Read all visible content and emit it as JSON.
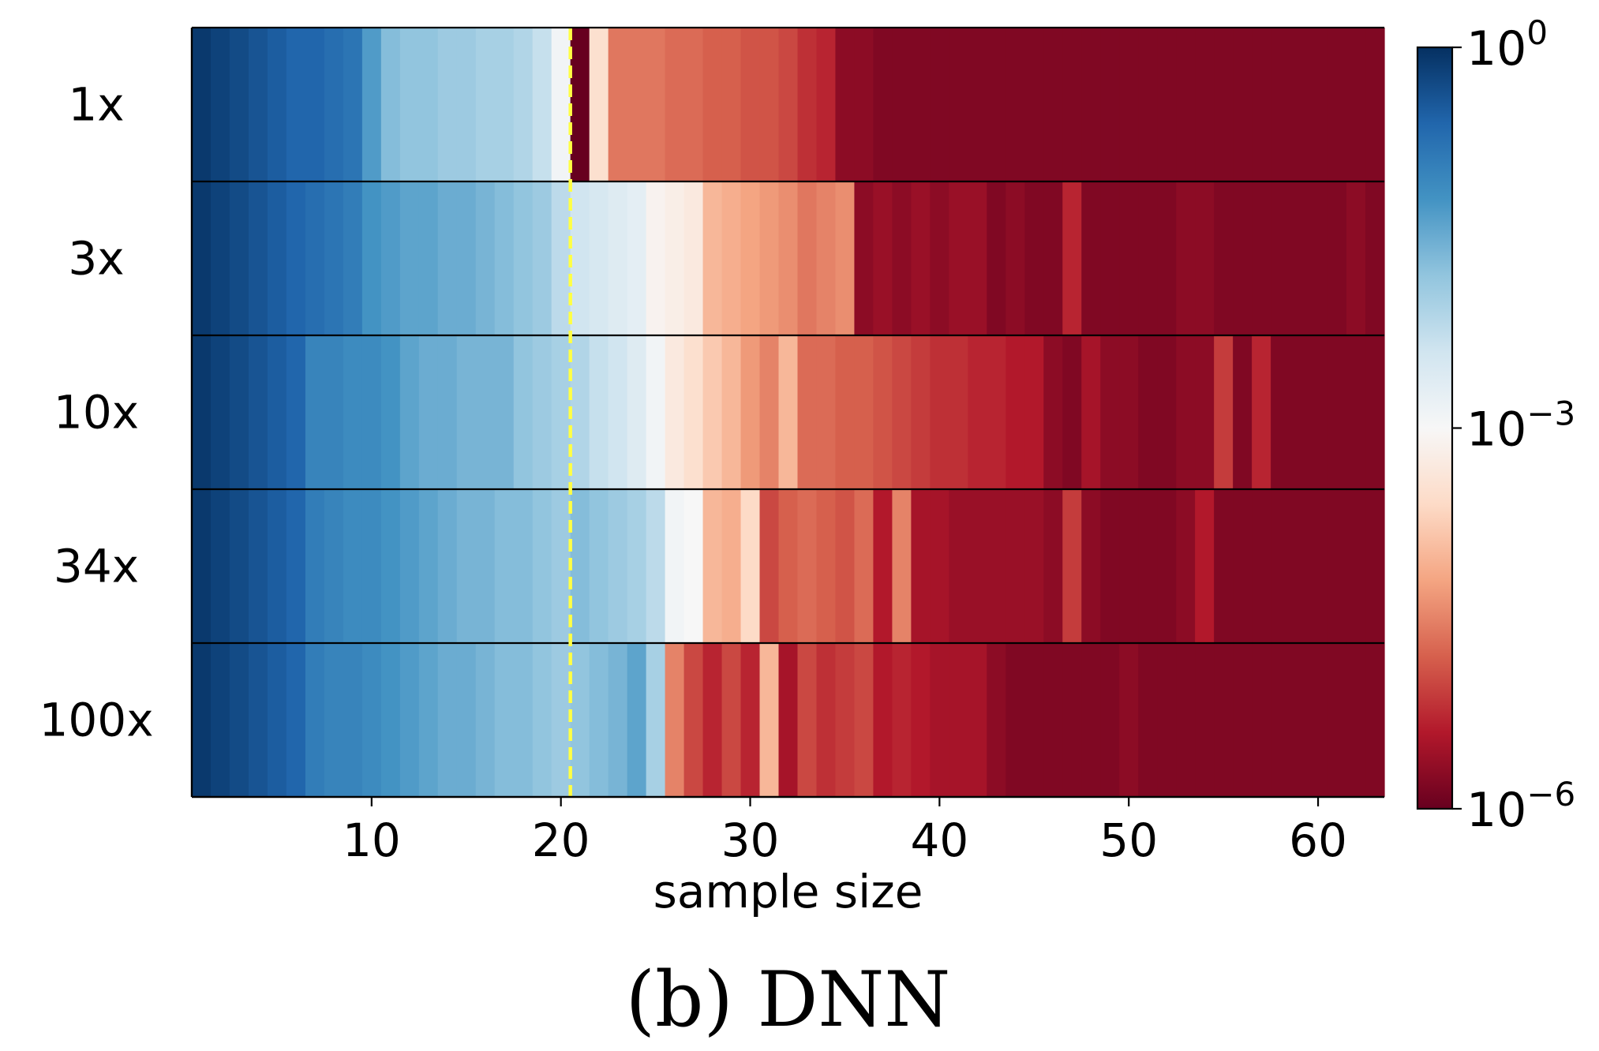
{
  "chart_data": {
    "type": "heatmap",
    "title": "",
    "caption": "(b) DNN",
    "xlabel": "sample size",
    "ylabel": "",
    "x": [
      1,
      2,
      3,
      4,
      5,
      6,
      7,
      8,
      9,
      10,
      11,
      12,
      13,
      14,
      15,
      16,
      17,
      18,
      19,
      20,
      21,
      22,
      23,
      24,
      25,
      26,
      27,
      28,
      29,
      30,
      31,
      32,
      33,
      34,
      35,
      36,
      37,
      38,
      39,
      40,
      41,
      42,
      43,
      44,
      45,
      46,
      47,
      48,
      49,
      50,
      51,
      52,
      53,
      54,
      55,
      56,
      57,
      58,
      59,
      60,
      61,
      62,
      63
    ],
    "xlim": [
      0.5,
      63.5
    ],
    "xticks": [
      10,
      20,
      30,
      40,
      50,
      60
    ],
    "xtick_labels": [
      "10",
      "20",
      "30",
      "40",
      "50",
      "60"
    ],
    "rows": [
      "1x",
      "3x",
      "10x",
      "34x",
      "100x"
    ],
    "value_scale": "log10",
    "zlim": [
      -6,
      0
    ],
    "reference_line": {
      "x": 20.5,
      "color": "#ffff44",
      "style": "dashed"
    },
    "colorbar": {
      "ticks": [
        0,
        -3,
        -6
      ],
      "tick_labels": [
        {
          "base": "10",
          "exp": "0"
        },
        {
          "base": "10",
          "exp": "−3"
        },
        {
          "base": "10",
          "exp": "−6"
        }
      ]
    },
    "series": [
      {
        "name": "1x",
        "values": [
          -0.1,
          -0.2,
          -0.3,
          -0.4,
          -0.5,
          -0.6,
          -0.6,
          -0.7,
          -0.8,
          -1.3,
          -1.7,
          -1.8,
          -1.8,
          -1.9,
          -1.9,
          -2.0,
          -2.0,
          -2.1,
          -2.3,
          -2.9,
          -6.0,
          -3.5,
          -4.6,
          -4.6,
          -4.6,
          -4.7,
          -4.7,
          -4.8,
          -4.8,
          -4.9,
          -4.9,
          -5.0,
          -5.2,
          -5.3,
          -5.7,
          -5.7,
          -5.8,
          -5.8,
          -5.8,
          -5.8,
          -5.8,
          -5.8,
          -5.8,
          -5.8,
          -5.8,
          -5.8,
          -5.8,
          -5.8,
          -5.8,
          -5.8,
          -5.8,
          -5.8,
          -5.8,
          -5.8,
          -5.8,
          -5.8,
          -5.8,
          -5.8,
          -5.8,
          -5.8,
          -5.8,
          -5.8,
          -5.8
        ]
      },
      {
        "name": "3x",
        "values": [
          -0.1,
          -0.2,
          -0.3,
          -0.4,
          -0.5,
          -0.6,
          -0.7,
          -0.8,
          -0.9,
          -1.2,
          -1.3,
          -1.4,
          -1.4,
          -1.5,
          -1.5,
          -1.6,
          -1.7,
          -1.8,
          -1.9,
          -2.2,
          -2.4,
          -2.5,
          -2.6,
          -2.7,
          -3.1,
          -3.2,
          -3.3,
          -4.0,
          -4.1,
          -4.2,
          -4.3,
          -4.4,
          -4.6,
          -4.5,
          -4.4,
          -5.7,
          -5.6,
          -5.7,
          -5.6,
          -5.7,
          -5.6,
          -5.6,
          -5.8,
          -5.7,
          -5.8,
          -5.8,
          -5.3,
          -5.8,
          -5.8,
          -5.8,
          -5.8,
          -5.8,
          -5.7,
          -5.7,
          -5.8,
          -5.8,
          -5.8,
          -5.8,
          -5.8,
          -5.8,
          -5.8,
          -5.7,
          -5.8
        ]
      },
      {
        "name": "10x",
        "values": [
          -0.1,
          -0.2,
          -0.3,
          -0.4,
          -0.5,
          -0.6,
          -1.0,
          -1.0,
          -1.1,
          -1.1,
          -1.2,
          -1.4,
          -1.5,
          -1.5,
          -1.6,
          -1.6,
          -1.6,
          -1.8,
          -1.9,
          -2.0,
          -2.1,
          -2.3,
          -2.4,
          -2.6,
          -2.9,
          -3.3,
          -3.5,
          -3.8,
          -4.0,
          -4.3,
          -4.5,
          -4.0,
          -4.7,
          -4.7,
          -4.8,
          -4.8,
          -4.9,
          -5.0,
          -5.1,
          -5.2,
          -5.2,
          -5.3,
          -5.3,
          -5.4,
          -5.4,
          -5.7,
          -5.8,
          -5.5,
          -5.7,
          -5.7,
          -5.8,
          -5.8,
          -5.7,
          -5.7,
          -5.1,
          -5.8,
          -5.3,
          -5.8,
          -5.8,
          -5.8,
          -5.8,
          -5.8,
          -5.8
        ]
      },
      {
        "name": "34x",
        "values": [
          -0.1,
          -0.2,
          -0.3,
          -0.4,
          -0.5,
          -0.6,
          -0.9,
          -1.0,
          -1.1,
          -1.1,
          -1.2,
          -1.3,
          -1.4,
          -1.5,
          -1.6,
          -1.6,
          -1.7,
          -1.7,
          -1.8,
          -1.9,
          -1.7,
          -1.8,
          -1.9,
          -2.0,
          -2.2,
          -2.9,
          -3.0,
          -4.0,
          -4.1,
          -3.6,
          -5.0,
          -4.8,
          -4.7,
          -4.8,
          -4.9,
          -4.7,
          -5.4,
          -4.5,
          -5.5,
          -5.5,
          -5.6,
          -5.6,
          -5.6,
          -5.6,
          -5.6,
          -5.7,
          -5.1,
          -5.7,
          -5.8,
          -5.8,
          -5.8,
          -5.8,
          -5.7,
          -5.4,
          -5.8,
          -5.8,
          -5.8,
          -5.8,
          -5.8,
          -5.8,
          -5.8,
          -5.8,
          -5.8
        ]
      },
      {
        "name": "100x",
        "values": [
          -0.1,
          -0.2,
          -0.3,
          -0.4,
          -0.5,
          -0.6,
          -0.9,
          -1.0,
          -1.0,
          -1.1,
          -1.2,
          -1.3,
          -1.4,
          -1.5,
          -1.5,
          -1.6,
          -1.7,
          -1.7,
          -1.8,
          -1.9,
          -1.8,
          -1.7,
          -1.6,
          -1.4,
          -2.0,
          -4.5,
          -5.0,
          -5.3,
          -5.0,
          -5.3,
          -4.0,
          -5.5,
          -5.0,
          -5.2,
          -5.1,
          -5.0,
          -5.4,
          -5.3,
          -5.4,
          -5.5,
          -5.5,
          -5.5,
          -5.7,
          -5.8,
          -5.8,
          -5.8,
          -5.8,
          -5.8,
          -5.8,
          -5.7,
          -5.8,
          -5.8,
          -5.8,
          -5.8,
          -5.8,
          -5.8,
          -5.8,
          -5.8,
          -5.8,
          -5.8,
          -5.8,
          -5.8,
          -5.8
        ]
      }
    ]
  }
}
